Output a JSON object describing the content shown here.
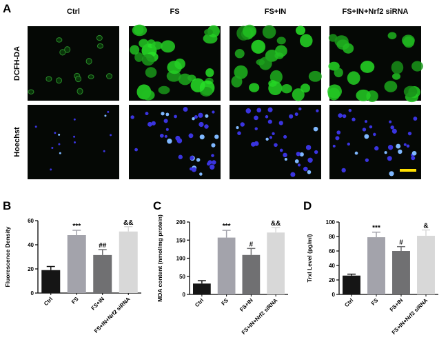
{
  "panel_a": {
    "letter": "A",
    "columns": [
      "Ctrl",
      "FS",
      "FS+IN",
      "FS+IN+Nrf2 siRNA"
    ],
    "rows": [
      "DCFH-DA",
      "Hoechst"
    ]
  },
  "chart_data": [
    {
      "type": "bar",
      "panel_label": "B",
      "ylabel": "Fluorescence Density",
      "categories": [
        "Ctrl",
        "FS",
        "FS+IN",
        "FS+IN+Nrf2 siRNA"
      ],
      "values": [
        19,
        48,
        31.5,
        51
      ],
      "errors": [
        3,
        4,
        4.5,
        4
      ],
      "annotations": [
        null,
        "***",
        "##",
        "&&"
      ],
      "colors": [
        "#151515",
        "#a3a3ab",
        "#707072",
        "#d8d8d8"
      ],
      "ylim": [
        0,
        60
      ],
      "yticks": [
        0,
        20,
        40,
        60
      ]
    },
    {
      "type": "bar",
      "panel_label": "C",
      "ylabel": "MDA content (nmol/mg protein)",
      "categories": [
        "Ctrl",
        "FS",
        "FS+IN",
        "FS+IN+Nrf2 siRNA"
      ],
      "values": [
        30,
        157,
        109,
        171
      ],
      "errors": [
        8,
        20,
        18,
        14
      ],
      "annotations": [
        null,
        "***",
        "#",
        "&&"
      ],
      "colors": [
        "#151515",
        "#a3a3ab",
        "#707072",
        "#d8d8d8"
      ],
      "ylim": [
        0,
        200
      ],
      "yticks": [
        0,
        50,
        100,
        150,
        200
      ]
    },
    {
      "type": "bar",
      "panel_label": "D",
      "ylabel": "Trxl Level (pg/ml)",
      "categories": [
        "Ctrl",
        "FS",
        "FS+IN",
        "FS+IN+Nrf2 siRNA"
      ],
      "values": [
        26,
        79,
        60,
        81
      ],
      "errors": [
        2,
        7,
        6,
        8
      ],
      "annotations": [
        null,
        "***",
        "#",
        "&"
      ],
      "colors": [
        "#151515",
        "#a3a3ab",
        "#707072",
        "#d8d8d8"
      ],
      "ylim": [
        0,
        100
      ],
      "yticks": [
        0,
        20,
        40,
        60,
        80,
        100
      ]
    }
  ]
}
